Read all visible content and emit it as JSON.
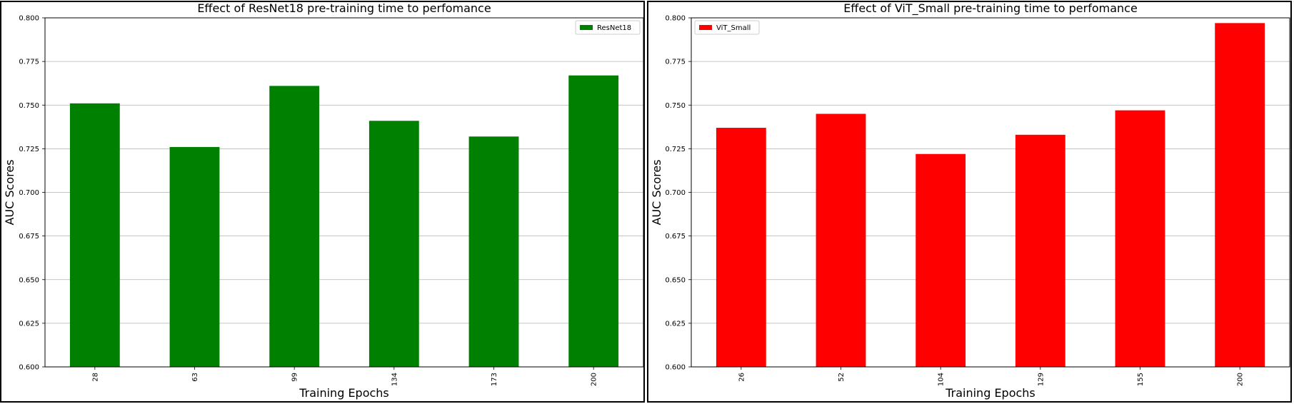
{
  "chart_data": [
    {
      "type": "bar",
      "title": "Effect of ResNet18 pre-training time to perfomance",
      "xlabel": "Training Epochs",
      "ylabel": "AUC Scores",
      "categories": [
        "28",
        "63",
        "99",
        "134",
        "173",
        "200"
      ],
      "series": [
        {
          "name": "ResNet18",
          "color": "#008000",
          "values": [
            0.751,
            0.726,
            0.761,
            0.741,
            0.732,
            0.767
          ]
        }
      ],
      "ylim": [
        0.6,
        0.8
      ],
      "yticks": [
        "0.600",
        "0.625",
        "0.650",
        "0.675",
        "0.700",
        "0.725",
        "0.750",
        "0.775",
        "0.800"
      ],
      "grid": "y",
      "legend": "top-right"
    },
    {
      "type": "bar",
      "title": "Effect of ViT_Small pre-training time to perfomance",
      "xlabel": "Training Epochs",
      "ylabel": "AUC Scores",
      "categories": [
        "26",
        "52",
        "104",
        "129",
        "155",
        "200"
      ],
      "series": [
        {
          "name": "ViT_Small",
          "color": "#ff0000",
          "values": [
            0.737,
            0.745,
            0.722,
            0.733,
            0.747,
            0.797
          ]
        }
      ],
      "ylim": [
        0.6,
        0.8
      ],
      "yticks": [
        "0.600",
        "0.625",
        "0.650",
        "0.675",
        "0.700",
        "0.725",
        "0.750",
        "0.775",
        "0.800"
      ],
      "grid": "y",
      "legend": "top-left"
    }
  ]
}
